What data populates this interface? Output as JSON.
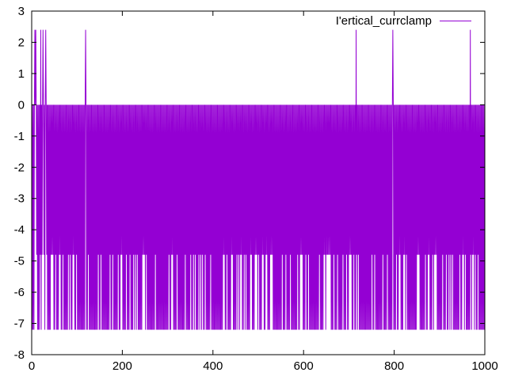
{
  "chart_data": {
    "type": "line",
    "title": "",
    "xlabel": "",
    "ylabel": "",
    "xlim": [
      0,
      1000
    ],
    "ylim": [
      -8,
      3
    ],
    "x_ticks": [
      0,
      200,
      400,
      600,
      800,
      1000
    ],
    "y_ticks": [
      -8,
      -7,
      -6,
      -5,
      -4,
      -3,
      -2,
      -1,
      0,
      1,
      2,
      3
    ],
    "grid": false,
    "legend_position": "top-right",
    "series": [
      {
        "name": "I'ertical_currclamp",
        "color": "#9400d3",
        "levels": {
          "spike": 2.4,
          "baseline": 0,
          "low": -4.8,
          "min": -7.2
        },
        "spike_x": [
          7,
          9,
          20,
          25,
          31,
          119,
          716,
          797,
          968
        ]
      }
    ]
  }
}
